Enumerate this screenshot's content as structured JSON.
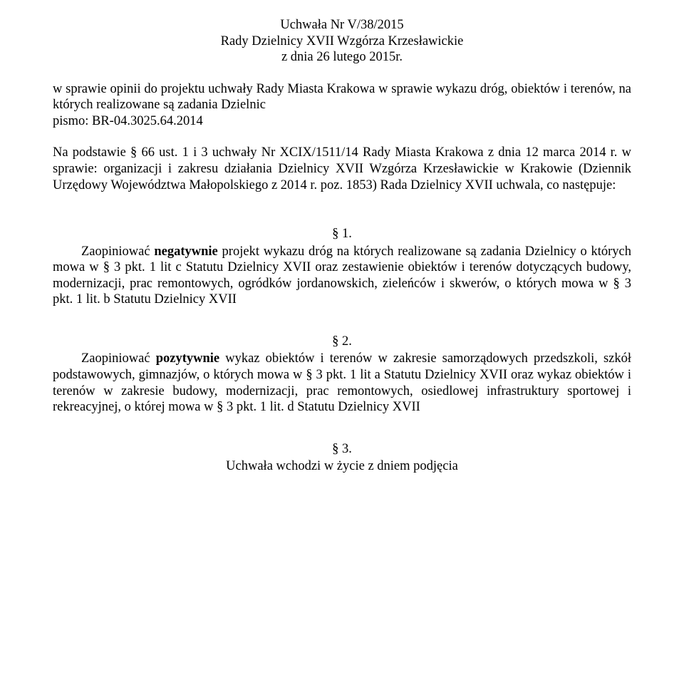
{
  "header": {
    "line1": "Uchwała Nr V/38/2015",
    "line2": "Rady Dzielnicy XVII Wzgórza Krzesławickie",
    "line3": "z dnia 26 lutego 2015r."
  },
  "subject": {
    "text_before_break": "w sprawie opinii do projektu uchwały Rady Miasta Krakowa w sprawie wykazu dróg, obiektów i terenów, na których realizowane są zadania Dzielnic",
    "pismo": "pismo: BR-04.3025.64.2014"
  },
  "basis": {
    "text": "Na podstawie § 66 ust. 1 i 3 uchwały Nr XCIX/1511/14 Rady Miasta Krakowa z dnia 12 marca 2014 r. w sprawie: organizacji i zakresu działania Dzielnicy XVII Wzgórza Krzesławickie w Krakowie (Dziennik Urzędowy Województwa Małopolskiego z 2014 r. poz. 1853) Rada Dzielnicy XVII uchwala, co następuje:"
  },
  "sections": {
    "s1": {
      "num": "§ 1.",
      "lead": "Zaopiniować ",
      "bold": "negatywnie",
      "rest": " projekt wykazu dróg na których realizowane są zadania Dzielnicy o których mowa w § 3 pkt. 1 lit c Statutu Dzielnicy XVII oraz zestawienie obiektów i terenów dotyczących budowy, modernizacji, prac remontowych, ogródków jordanowskich, zieleńców i skwerów, o których mowa w § 3 pkt. 1 lit. b Statutu Dzielnicy XVII"
    },
    "s2": {
      "num": "§ 2.",
      "lead": "Zaopiniować ",
      "bold": "pozytywnie",
      "rest": " wykaz obiektów i terenów w zakresie samorządowych przedszkoli, szkół podstawowych, gimnazjów, o których mowa w § 3 pkt. 1 lit a Statutu Dzielnicy XVII oraz wykaz obiektów i terenów w zakresie budowy, modernizacji, prac remontowych, osiedlowej infrastruktury sportowej i rekreacyjnej, o której mowa w § 3 pkt. 1 lit. d Statutu Dzielnicy XVII"
    },
    "s3": {
      "num": "§ 3.",
      "text": "Uchwała wchodzi w życie z dniem podjęcia"
    }
  }
}
